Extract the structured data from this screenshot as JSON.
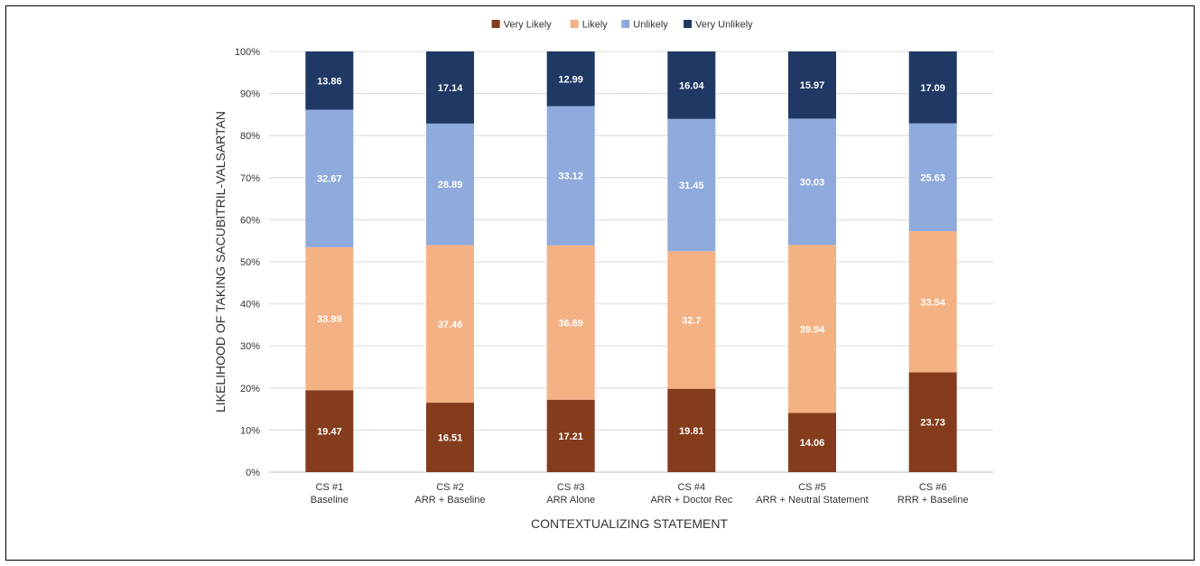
{
  "chart_data": {
    "type": "bar",
    "stacked": true,
    "percent_stacked": true,
    "title": "",
    "xlabel": "CONTEXTUALIZING STATEMENT",
    "ylabel": "LIKELIHOOD OF TAKING SACUBITRIL-VALSARTAN",
    "ylim": [
      0,
      100
    ],
    "y_ticks": [
      "0%",
      "10%",
      "20%",
      "30%",
      "40%",
      "50%",
      "60%",
      "70%",
      "80%",
      "90%",
      "100%"
    ],
    "grid": true,
    "legend_position": "top",
    "categories": [
      [
        "CS #1",
        "Baseline"
      ],
      [
        "CS #2",
        "ARR + Baseline"
      ],
      [
        "CS #3",
        "ARR Alone"
      ],
      [
        "CS #4",
        "ARR + Doctor Rec"
      ],
      [
        "CS #5",
        "ARR + Neutral Statement"
      ],
      [
        "CS #6",
        "RRR + Baseline"
      ]
    ],
    "series": [
      {
        "name": "Very Likely",
        "color": "#843C1C",
        "values": [
          19.47,
          16.51,
          17.21,
          19.81,
          14.06,
          23.73
        ]
      },
      {
        "name": "Likely",
        "color": "#F4B183",
        "values": [
          33.99,
          37.46,
          36.69,
          32.7,
          39.94,
          33.54
        ]
      },
      {
        "name": "Unlikely",
        "color": "#8FAADC",
        "values": [
          32.67,
          28.89,
          33.12,
          31.45,
          30.03,
          25.63
        ]
      },
      {
        "name": "Very Unlikely",
        "color": "#1F3864",
        "values": [
          13.86,
          17.14,
          12.99,
          16.04,
          15.97,
          17.09
        ]
      }
    ],
    "data_label_strings": [
      [
        "19.47",
        "16.51",
        "17.21",
        "19.81",
        "14.06",
        "23.73"
      ],
      [
        "33.99",
        "37.46",
        "36.69",
        "32.7",
        "39.94",
        "33.54"
      ],
      [
        "32.67",
        "28.89",
        "33.12",
        "31.45",
        "30.03",
        "25.63"
      ],
      [
        "13.86",
        "17.14",
        "12.99",
        "16.04",
        "15.97",
        "17.09"
      ]
    ]
  }
}
